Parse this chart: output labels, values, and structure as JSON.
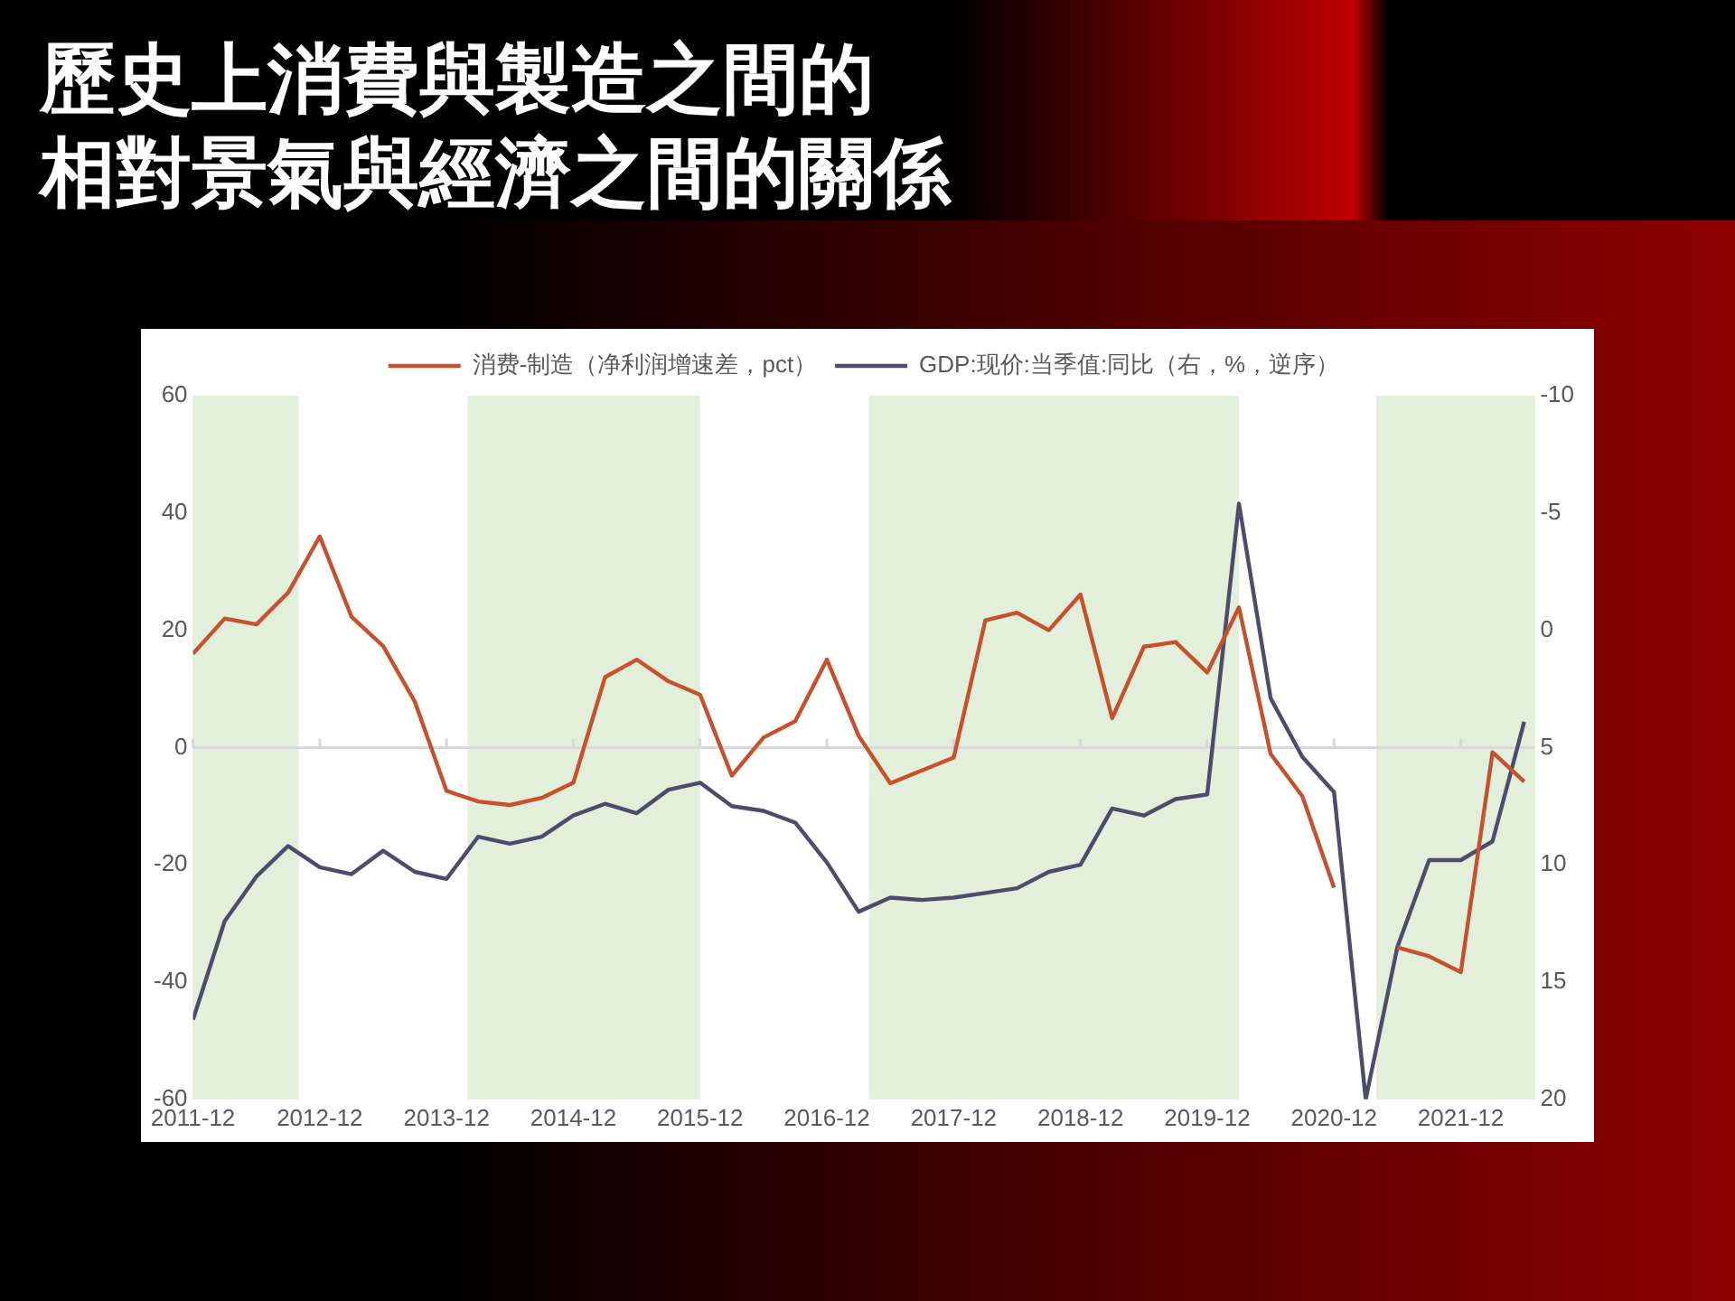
{
  "chart_data": {
    "type": "line",
    "title": "歷史上消費與製造之間的相對景氣與經濟之間的關係",
    "x": [
      "2011-12",
      "2012-03",
      "2012-06",
      "2012-09",
      "2012-12",
      "2013-03",
      "2013-06",
      "2013-09",
      "2013-12",
      "2014-03",
      "2014-06",
      "2014-09",
      "2014-12",
      "2015-03",
      "2015-06",
      "2015-09",
      "2015-12",
      "2016-03",
      "2016-06",
      "2016-09",
      "2016-12",
      "2017-03",
      "2017-06",
      "2017-09",
      "2017-12",
      "2018-03",
      "2018-06",
      "2018-09",
      "2018-12",
      "2019-03",
      "2019-06",
      "2019-09",
      "2019-12",
      "2020-03",
      "2020-06",
      "2020-09",
      "2020-12",
      "2021-03",
      "2021-06",
      "2021-09",
      "2021-12",
      "2022-03",
      "2022-06"
    ],
    "xlim": [
      "2011-12",
      "2022-07"
    ],
    "xticks": [
      "2011-12",
      "2012-12",
      "2013-12",
      "2014-12",
      "2015-12",
      "2016-12",
      "2017-12",
      "2018-12",
      "2019-12",
      "2020-12",
      "2021-12"
    ],
    "ylim": [
      -60,
      60
    ],
    "yticks": [
      -60,
      -40,
      -20,
      0,
      20,
      40,
      60
    ],
    "y2lim": [
      20,
      -10
    ],
    "y2ticks": [
      20,
      15,
      10,
      5,
      0,
      -5,
      -10
    ],
    "series": [
      {
        "name": "消费-制造（净利润增速差，pct）",
        "color": "#c8502d",
        "values": [
          16,
          22,
          21,
          26.4,
          36,
          22.3,
          17.3,
          7.8,
          -7.4,
          -9.2,
          -9.8,
          -8.6,
          -6,
          12,
          15,
          11.3,
          9,
          -4.8,
          1.7,
          4.5,
          15,
          2,
          -6.1,
          -3.9,
          -1.7,
          21.7,
          23,
          20,
          26.1,
          5,
          17.2,
          18,
          12.8,
          23.9,
          -1.1,
          -8.3,
          -23.9,
          null,
          -34.1,
          -35.6,
          -38.3,
          -0.8,
          -5.8
        ]
      },
      {
        "name": "GDP:现价:当季值:同比（右，%，逆序）",
        "color": "#4d4d6b",
        "axis": "y2",
        "values": [
          16.6,
          12.4,
          10.5,
          9.2,
          10.1,
          10.4,
          9.4,
          10.3,
          10.6,
          8.8,
          9.1,
          8.8,
          7.9,
          7.4,
          7.8,
          6.8,
          6.5,
          7.5,
          7.7,
          8.2,
          9.9,
          12,
          11.4,
          11.5,
          11.4,
          11.2,
          11,
          10.3,
          10,
          7.6,
          7.9,
          7.2,
          7,
          -5.4,
          2.9,
          5.4,
          6.9,
          20,
          13.5,
          9.8,
          9.8,
          9,
          3.9
        ]
      }
    ],
    "bands": [
      {
        "axis": "x",
        "from": "2011-12",
        "to": "2012-10",
        "color": "#e2efda"
      },
      {
        "axis": "x",
        "from": "2014-02",
        "to": "2015-12",
        "color": "#e2efda"
      },
      {
        "axis": "x",
        "from": "2017-04",
        "to": "2020-03",
        "color": "#e2efda"
      },
      {
        "axis": "x",
        "from": "2021-04",
        "to": "2022-07",
        "color": "#e2efda"
      }
    ],
    "ref_lines": [
      {
        "axis": "y",
        "value": 0,
        "color": "#d9d9d9"
      }
    ],
    "grid": false,
    "legend": "top",
    "marker": "none",
    "line_style": "solid"
  }
}
